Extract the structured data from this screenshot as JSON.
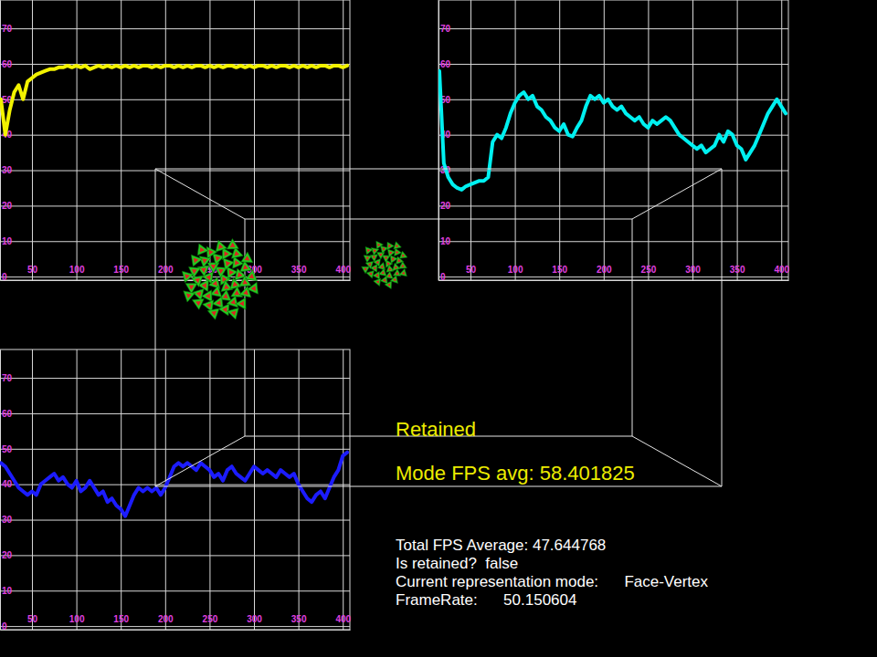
{
  "chart_data": [
    {
      "type": "line",
      "grid": true,
      "color": "#f2f200",
      "xlim": [
        14,
        408
      ],
      "ylim": [
        -1,
        78
      ],
      "xticks": [
        50,
        100,
        150,
        200,
        250,
        300,
        350,
        400
      ],
      "yticks": [
        0,
        10,
        20,
        30,
        40,
        50,
        60,
        70
      ],
      "x": [
        15,
        20,
        25,
        30,
        35,
        40,
        45,
        50,
        55,
        60,
        65,
        70,
        75,
        80,
        85,
        90,
        95,
        100,
        105,
        110,
        115,
        120,
        125,
        130,
        135,
        140,
        145,
        150,
        155,
        160,
        165,
        170,
        175,
        180,
        185,
        190,
        195,
        200,
        205,
        210,
        215,
        220,
        225,
        230,
        235,
        240,
        245,
        250,
        255,
        260,
        265,
        270,
        275,
        280,
        285,
        290,
        295,
        300,
        305,
        310,
        315,
        320,
        325,
        330,
        335,
        340,
        345,
        350,
        355,
        360,
        365,
        370,
        375,
        380,
        385,
        390,
        395,
        400,
        405
      ],
      "values": [
        50,
        40,
        47,
        52,
        54,
        50,
        55,
        56,
        57,
        57.5,
        58,
        58.5,
        58.5,
        59,
        59,
        59.5,
        59,
        59.5,
        59,
        59.5,
        58.5,
        59,
        59.5,
        59,
        59.5,
        59,
        59.5,
        59,
        59.5,
        59,
        59.5,
        59,
        59.5,
        59.5,
        59,
        59.5,
        59,
        59.5,
        59.5,
        59,
        59.5,
        59,
        59.5,
        59,
        59.5,
        59.5,
        59,
        59.5,
        59,
        59.5,
        59,
        59.5,
        59.5,
        59,
        59.5,
        59,
        59.5,
        59,
        59.5,
        59.5,
        59,
        59.5,
        59,
        59.5,
        59.5,
        59,
        59.5,
        59,
        59.5,
        59,
        59.5,
        59,
        59.5,
        59.5,
        59,
        59.5,
        59.5,
        59,
        59.5
      ]
    },
    {
      "type": "line",
      "grid": true,
      "color": "#00f0f0",
      "xlim": [
        14,
        408
      ],
      "ylim": [
        -1,
        78
      ],
      "xticks": [
        50,
        100,
        150,
        200,
        250,
        300,
        350,
        400
      ],
      "yticks": [
        0,
        10,
        20,
        30,
        40,
        50,
        60,
        70
      ],
      "x": [
        15,
        20,
        25,
        30,
        35,
        40,
        45,
        50,
        55,
        60,
        65,
        70,
        75,
        80,
        85,
        90,
        95,
        100,
        105,
        110,
        115,
        120,
        125,
        130,
        135,
        140,
        145,
        150,
        155,
        160,
        165,
        170,
        175,
        180,
        185,
        190,
        195,
        200,
        205,
        210,
        215,
        220,
        225,
        230,
        235,
        240,
        245,
        250,
        255,
        260,
        265,
        270,
        275,
        280,
        285,
        290,
        295,
        300,
        305,
        310,
        315,
        320,
        325,
        330,
        335,
        340,
        345,
        350,
        355,
        360,
        365,
        370,
        375,
        380,
        385,
        390,
        395,
        400,
        405
      ],
      "values": [
        58,
        32,
        28,
        26,
        25,
        24.5,
        25.5,
        26,
        26.5,
        27,
        27,
        28,
        38,
        40,
        39,
        42,
        46,
        49,
        51,
        52,
        50,
        51,
        48,
        47,
        45,
        44,
        42,
        41,
        43,
        40,
        39.5,
        42,
        44,
        48,
        51,
        50,
        51,
        49,
        50,
        48,
        47,
        48,
        46,
        45,
        44,
        45,
        43,
        42,
        44,
        43,
        44,
        45,
        44,
        42,
        40,
        39,
        38,
        37,
        36,
        37,
        35,
        36,
        37,
        40,
        38,
        41,
        40,
        37,
        36,
        33,
        35,
        37,
        40,
        43,
        46,
        48,
        50,
        48,
        46
      ]
    },
    {
      "type": "line",
      "grid": true,
      "color": "#1c1cff",
      "xlim": [
        14,
        408
      ],
      "ylim": [
        -1,
        78
      ],
      "xticks": [
        50,
        100,
        150,
        200,
        250,
        300,
        350,
        400
      ],
      "yticks": [
        0,
        10,
        20,
        30,
        40,
        50,
        60,
        70
      ],
      "x": [
        15,
        20,
        25,
        30,
        35,
        40,
        45,
        50,
        55,
        60,
        65,
        70,
        75,
        80,
        85,
        90,
        95,
        100,
        105,
        110,
        115,
        120,
        125,
        130,
        135,
        140,
        145,
        150,
        155,
        160,
        165,
        170,
        175,
        180,
        185,
        190,
        195,
        200,
        205,
        210,
        215,
        220,
        225,
        230,
        235,
        240,
        245,
        250,
        255,
        260,
        265,
        270,
        275,
        280,
        285,
        290,
        295,
        300,
        305,
        310,
        315,
        320,
        325,
        330,
        335,
        340,
        345,
        350,
        355,
        360,
        365,
        370,
        375,
        380,
        385,
        390,
        395,
        400,
        405
      ],
      "values": [
        46,
        45,
        43,
        41,
        39,
        38,
        37,
        38,
        37,
        40,
        41,
        42,
        43,
        41,
        42,
        40,
        39,
        41,
        38,
        39,
        41,
        39,
        37,
        38,
        35,
        36,
        34,
        33,
        31,
        34,
        37,
        39,
        38,
        39,
        38,
        39,
        37,
        39,
        42,
        45,
        46,
        45,
        46,
        45,
        44,
        46,
        45,
        44,
        42,
        43,
        41,
        44,
        45,
        43,
        42,
        41,
        43,
        45,
        44,
        43,
        44,
        43,
        42,
        44,
        43,
        42,
        43,
        40,
        38,
        36,
        35,
        37,
        38,
        36,
        39,
        42,
        44,
        48,
        49
      ]
    }
  ],
  "panel": {
    "mode": "Retained",
    "mode_fps": "Mode FPS avg: 58.401825",
    "lines": [
      "Total FPS Average: 47.644768",
      "Is retained?  false",
      "Current representation mode:      Face-Vertex",
      "FrameRate:      50.150604"
    ]
  }
}
